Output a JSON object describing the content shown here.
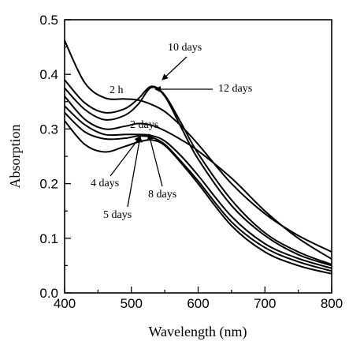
{
  "chart_data": {
    "type": "line",
    "xlabel": "Wavelength (nm)",
    "ylabel": "Absorption",
    "xlim": [
      400,
      800
    ],
    "ylim": [
      0.0,
      0.5
    ],
    "x_ticks": [
      "400",
      "500",
      "600",
      "700",
      "800"
    ],
    "y_ticks": [
      "0.0",
      "0.1",
      "0.2",
      "0.3",
      "0.4",
      "0.5"
    ],
    "grid": false,
    "series": [
      {
        "name": "2 h",
        "x": [
          400,
          430,
          460,
          490,
          510,
          530,
          550,
          575,
          600,
          650,
          700,
          750,
          800
        ],
        "y": [
          0.462,
          0.385,
          0.357,
          0.355,
          0.353,
          0.345,
          0.332,
          0.305,
          0.272,
          0.2,
          0.145,
          0.105,
          0.075
        ]
      },
      {
        "name": "2 days",
        "x": [
          400,
          430,
          460,
          490,
          510,
          530,
          550,
          575,
          600,
          650,
          700,
          750,
          800
        ],
        "y": [
          0.39,
          0.348,
          0.33,
          0.337,
          0.355,
          0.378,
          0.362,
          0.31,
          0.255,
          0.17,
          0.11,
          0.075,
          0.052
        ]
      },
      {
        "name": "4 days",
        "x": [
          400,
          430,
          460,
          490,
          510,
          530,
          550,
          575,
          600,
          650,
          700,
          750,
          800
        ],
        "y": [
          0.375,
          0.336,
          0.317,
          0.325,
          0.345,
          0.376,
          0.36,
          0.302,
          0.245,
          0.16,
          0.105,
          0.07,
          0.05
        ]
      },
      {
        "name": "5 days",
        "x": [
          400,
          430,
          460,
          490,
          510,
          530,
          550,
          575,
          600,
          650,
          700,
          750,
          800
        ],
        "y": [
          0.36,
          0.318,
          0.3,
          0.305,
          0.31,
          0.307,
          0.297,
          0.28,
          0.26,
          0.21,
          0.15,
          0.1,
          0.062
        ]
      },
      {
        "name": "8 days",
        "x": [
          400,
          430,
          460,
          490,
          510,
          530,
          550,
          575,
          600,
          650,
          700,
          750,
          800
        ],
        "y": [
          0.342,
          0.308,
          0.29,
          0.29,
          0.29,
          0.288,
          0.278,
          0.25,
          0.215,
          0.14,
          0.09,
          0.063,
          0.045
        ]
      },
      {
        "name": "10 days",
        "x": [
          400,
          430,
          460,
          490,
          510,
          530,
          550,
          575,
          600,
          650,
          700,
          750,
          800
        ],
        "y": [
          0.33,
          0.295,
          0.282,
          0.283,
          0.287,
          0.285,
          0.272,
          0.24,
          0.205,
          0.13,
          0.083,
          0.057,
          0.04
        ]
      },
      {
        "name": "12 days",
        "x": [
          400,
          430,
          460,
          490,
          510,
          530,
          550,
          575,
          600,
          650,
          700,
          750,
          800
        ],
        "y": [
          0.315,
          0.272,
          0.258,
          0.268,
          0.276,
          0.28,
          0.27,
          0.237,
          0.2,
          0.123,
          0.075,
          0.05,
          0.035
        ]
      }
    ],
    "annotations": [
      {
        "text": "10 days",
        "arrow_to": [
          530,
          0.378
        ]
      },
      {
        "text": "12 days",
        "arrow_to": [
          532,
          0.373
        ]
      },
      {
        "text": "2 h",
        "arrow_to": null
      },
      {
        "text": "2 days",
        "arrow_to": null
      },
      {
        "text": "4 days",
        "arrow_to": [
          508,
          0.288
        ]
      },
      {
        "text": "5 days",
        "arrow_to": [
          518,
          0.285
        ]
      },
      {
        "text": "8 days",
        "arrow_to": [
          525,
          0.29
        ]
      }
    ]
  }
}
